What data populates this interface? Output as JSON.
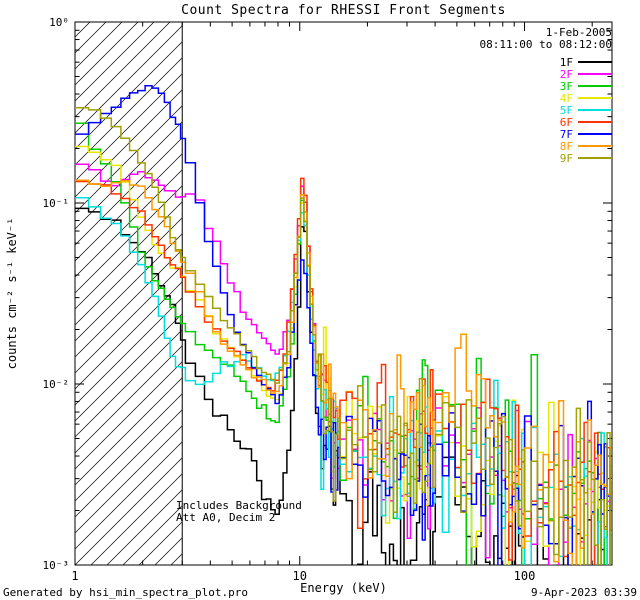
{
  "title": "Count Spectra for RHESSI Front Segments",
  "header": {
    "date": "1-Feb-2005",
    "time_range": "08:11:00 to 08:12:00"
  },
  "annotations": {
    "line1": "Includes Background",
    "line2": "Att A0, Decim 2"
  },
  "footer": {
    "generated_by": "Generated by hsi_min_spectra_plot.pro",
    "timestamp": "9-Apr-2023 03:39"
  },
  "legend": {
    "items": [
      {
        "label": "1F",
        "color": "#000000"
      },
      {
        "label": "2F",
        "color": "#ff00ff"
      },
      {
        "label": "3F",
        "color": "#00cc00"
      },
      {
        "label": "4F",
        "color": "#e6e600"
      },
      {
        "label": "5F",
        "color": "#00dede"
      },
      {
        "label": "6F",
        "color": "#ff3300"
      },
      {
        "label": "7F",
        "color": "#0000ff"
      },
      {
        "label": "8F",
        "color": "#ff9900"
      },
      {
        "label": "9F",
        "color": "#a0a000"
      }
    ]
  },
  "chart_data": {
    "type": "line",
    "title": "Count Spectra for RHESSI Front Segments",
    "xlabel": "Energy (keV)",
    "ylabel": "counts cm⁻² s⁻¹ keV⁻¹",
    "xscale": "log",
    "yscale": "log",
    "xlim": [
      1,
      245
    ],
    "ylim": [
      0.001,
      1
    ],
    "x_ticks": {
      "major": [
        1,
        10,
        100
      ],
      "labels": [
        "1",
        "10",
        "100"
      ],
      "minor": [
        2,
        3,
        4,
        5,
        6,
        7,
        8,
        9,
        20,
        30,
        40,
        50,
        60,
        70,
        80,
        90,
        200
      ]
    },
    "y_ticks": {
      "major": [
        1,
        0.1,
        0.01,
        0.001
      ],
      "labels": [
        "10⁰",
        "10⁻¹",
        "10⁻²",
        "10⁻³"
      ]
    },
    "hatched_region": {
      "x_start": 1,
      "x_end": 3,
      "note": "hatched low-energy attenuated band"
    },
    "boundary_line_kev": 3,
    "legend_position": "top-right",
    "peak_energy_kev": 10.4,
    "noise": {
      "seed": 12345,
      "start_kev": 12,
      "sigma_by_energy": [
        [
          12,
          0.015
        ],
        [
          30,
          0.16
        ],
        [
          100,
          0.2
        ],
        [
          1000,
          0.24
        ]
      ],
      "dropout_prob": 0.05
    },
    "series": [
      {
        "name": "1F",
        "color": "#000000",
        "sigma_scale": 1.3,
        "points": [
          [
            1.0,
            0.095
          ],
          [
            1.7,
            0.07
          ],
          [
            2.2,
            0.045
          ],
          [
            2.7,
            0.028
          ],
          [
            3.3,
            0.012
          ],
          [
            4,
            0.008
          ],
          [
            5,
            0.0055
          ],
          [
            6,
            0.004
          ],
          [
            7,
            0.0024
          ],
          [
            8,
            0.0018
          ],
          [
            9,
            0.0045
          ],
          [
            9.8,
            0.02
          ],
          [
            10.4,
            0.105
          ],
          [
            11,
            0.03
          ],
          [
            12,
            0.006
          ],
          [
            14,
            0.0025
          ],
          [
            20,
            0.0015
          ],
          [
            30,
            0.0012
          ],
          [
            50,
            0.0015
          ],
          [
            70,
            0.0012
          ],
          [
            100,
            0.001
          ],
          [
            150,
            0.0009
          ],
          [
            230,
            0.0009
          ]
        ]
      },
      {
        "name": "2F",
        "color": "#ff00ff",
        "sigma_scale": 1,
        "points": [
          [
            1.0,
            0.17
          ],
          [
            1.5,
            0.13
          ],
          [
            2,
            0.15
          ],
          [
            2.5,
            0.12
          ],
          [
            3,
            0.11
          ],
          [
            3.6,
            0.1
          ],
          [
            4.2,
            0.06
          ],
          [
            5,
            0.035
          ],
          [
            6,
            0.022
          ],
          [
            7,
            0.018
          ],
          [
            8,
            0.014
          ],
          [
            9,
            0.022
          ],
          [
            9.8,
            0.06
          ],
          [
            10.4,
            0.15
          ],
          [
            11,
            0.05
          ],
          [
            12,
            0.012
          ],
          [
            14,
            0.006
          ],
          [
            20,
            0.004
          ],
          [
            30,
            0.003
          ],
          [
            50,
            0.004
          ],
          [
            70,
            0.003
          ],
          [
            100,
            0.0025
          ],
          [
            150,
            0.002
          ],
          [
            230,
            0.002
          ]
        ]
      },
      {
        "name": "3F",
        "color": "#00cc00",
        "sigma_scale": 1,
        "points": [
          [
            1.0,
            0.3
          ],
          [
            1.6,
            0.12
          ],
          [
            2,
            0.05
          ],
          [
            2.5,
            0.03
          ],
          [
            3,
            0.022
          ],
          [
            4,
            0.015
          ],
          [
            5,
            0.012
          ],
          [
            6,
            0.009
          ],
          [
            7,
            0.007
          ],
          [
            8,
            0.006
          ],
          [
            9,
            0.011
          ],
          [
            9.8,
            0.045
          ],
          [
            10.4,
            0.13
          ],
          [
            11,
            0.04
          ],
          [
            12,
            0.01
          ],
          [
            14,
            0.005
          ],
          [
            20,
            0.0045
          ],
          [
            30,
            0.004
          ],
          [
            45,
            0.008
          ],
          [
            60,
            0.006
          ],
          [
            80,
            0.004
          ],
          [
            100,
            0.0035
          ],
          [
            150,
            0.003
          ],
          [
            230,
            0.0028
          ]
        ]
      },
      {
        "name": "4F",
        "color": "#e6e600",
        "sigma_scale": 1,
        "points": [
          [
            1.0,
            0.23
          ],
          [
            1.6,
            0.15
          ],
          [
            2,
            0.08
          ],
          [
            2.5,
            0.05
          ],
          [
            3,
            0.04
          ],
          [
            3.5,
            0.03
          ],
          [
            4.2,
            0.02
          ],
          [
            5,
            0.015
          ],
          [
            6,
            0.012
          ],
          [
            7,
            0.009
          ],
          [
            8,
            0.008
          ],
          [
            9,
            0.013
          ],
          [
            9.8,
            0.05
          ],
          [
            10.4,
            0.12
          ],
          [
            11,
            0.04
          ],
          [
            12,
            0.01
          ],
          [
            14,
            0.006
          ],
          [
            20,
            0.005
          ],
          [
            30,
            0.004
          ],
          [
            50,
            0.005
          ],
          [
            70,
            0.004
          ],
          [
            100,
            0.003
          ],
          [
            150,
            0.0025
          ],
          [
            230,
            0.0022
          ]
        ]
      },
      {
        "name": "5F",
        "color": "#00dede",
        "sigma_scale": 1.1,
        "points": [
          [
            1.0,
            0.11
          ],
          [
            1.5,
            0.08
          ],
          [
            1.9,
            0.05
          ],
          [
            2.3,
            0.03
          ],
          [
            2.8,
            0.013
          ],
          [
            3.5,
            0.0095
          ],
          [
            4.5,
            0.012
          ],
          [
            5.5,
            0.014
          ],
          [
            6.5,
            0.012
          ],
          [
            7.5,
            0.01
          ],
          [
            8.5,
            0.013
          ],
          [
            9.5,
            0.035
          ],
          [
            10.4,
            0.11
          ],
          [
            11,
            0.035
          ],
          [
            12,
            0.009
          ],
          [
            14,
            0.005
          ],
          [
            20,
            0.004
          ],
          [
            30,
            0.0035
          ],
          [
            50,
            0.004
          ],
          [
            70,
            0.0035
          ],
          [
            100,
            0.003
          ],
          [
            150,
            0.0025
          ],
          [
            230,
            0.002
          ]
        ]
      },
      {
        "name": "6F",
        "color": "#ff3300",
        "sigma_scale": 1,
        "points": [
          [
            1.0,
            0.14
          ],
          [
            1.6,
            0.11
          ],
          [
            2,
            0.09
          ],
          [
            2.5,
            0.05
          ],
          [
            3,
            0.04
          ],
          [
            3.7,
            0.025
          ],
          [
            4.5,
            0.018
          ],
          [
            5.5,
            0.014
          ],
          [
            6.5,
            0.011
          ],
          [
            7.5,
            0.009
          ],
          [
            8.5,
            0.013
          ],
          [
            9.5,
            0.045
          ],
          [
            10.4,
            0.155
          ],
          [
            11,
            0.05
          ],
          [
            12,
            0.012
          ],
          [
            14,
            0.007
          ],
          [
            20,
            0.006
          ],
          [
            30,
            0.005
          ],
          [
            50,
            0.006
          ],
          [
            70,
            0.005
          ],
          [
            100,
            0.004
          ],
          [
            150,
            0.003
          ],
          [
            230,
            0.0028
          ]
        ]
      },
      {
        "name": "7F",
        "color": "#0000ff",
        "sigma_scale": 1,
        "points": [
          [
            1.0,
            0.24
          ],
          [
            1.5,
            0.33
          ],
          [
            1.8,
            0.4
          ],
          [
            2.1,
            0.44
          ],
          [
            2.4,
            0.4
          ],
          [
            2.8,
            0.3
          ],
          [
            3.2,
            0.18
          ],
          [
            3.6,
            0.1
          ],
          [
            4,
            0.06
          ],
          [
            4.5,
            0.035
          ],
          [
            5,
            0.022
          ],
          [
            6,
            0.014
          ],
          [
            7,
            0.01
          ],
          [
            8,
            0.008
          ],
          [
            9,
            0.013
          ],
          [
            9.8,
            0.035
          ],
          [
            10.4,
            0.052
          ],
          [
            11,
            0.025
          ],
          [
            12,
            0.007
          ],
          [
            14,
            0.0045
          ],
          [
            20,
            0.0035
          ],
          [
            30,
            0.003
          ],
          [
            50,
            0.0035
          ],
          [
            70,
            0.003
          ],
          [
            100,
            0.0025
          ],
          [
            150,
            0.002
          ],
          [
            230,
            0.002
          ]
        ]
      },
      {
        "name": "8F",
        "color": "#ff9900",
        "sigma_scale": 1,
        "points": [
          [
            1.0,
            0.13
          ],
          [
            1.6,
            0.13
          ],
          [
            2,
            0.12
          ],
          [
            2.5,
            0.08
          ],
          [
            3,
            0.05
          ],
          [
            3.6,
            0.03
          ],
          [
            4.2,
            0.02
          ],
          [
            5,
            0.015
          ],
          [
            6,
            0.012
          ],
          [
            7,
            0.01
          ],
          [
            8,
            0.009
          ],
          [
            9,
            0.015
          ],
          [
            9.8,
            0.055
          ],
          [
            10.4,
            0.13
          ],
          [
            11,
            0.045
          ],
          [
            12,
            0.012
          ],
          [
            14,
            0.007
          ],
          [
            20,
            0.006
          ],
          [
            30,
            0.005
          ],
          [
            45,
            0.009
          ],
          [
            60,
            0.007
          ],
          [
            80,
            0.005
          ],
          [
            100,
            0.004
          ],
          [
            150,
            0.003
          ],
          [
            230,
            0.003
          ]
        ]
      },
      {
        "name": "9F",
        "color": "#a0a000",
        "sigma_scale": 1,
        "points": [
          [
            1.0,
            0.36
          ],
          [
            1.5,
            0.28
          ],
          [
            1.9,
            0.18
          ],
          [
            2.3,
            0.12
          ],
          [
            2.8,
            0.06
          ],
          [
            3.4,
            0.04
          ],
          [
            4,
            0.03
          ],
          [
            5,
            0.02
          ],
          [
            6,
            0.015
          ],
          [
            7,
            0.012
          ],
          [
            8,
            0.01
          ],
          [
            9,
            0.016
          ],
          [
            9.8,
            0.055
          ],
          [
            10.4,
            0.12
          ],
          [
            11,
            0.04
          ],
          [
            12,
            0.011
          ],
          [
            14,
            0.006
          ],
          [
            20,
            0.005
          ],
          [
            30,
            0.0045
          ],
          [
            50,
            0.005
          ],
          [
            70,
            0.004
          ],
          [
            100,
            0.0035
          ],
          [
            150,
            0.003
          ],
          [
            230,
            0.0028
          ]
        ]
      }
    ]
  }
}
